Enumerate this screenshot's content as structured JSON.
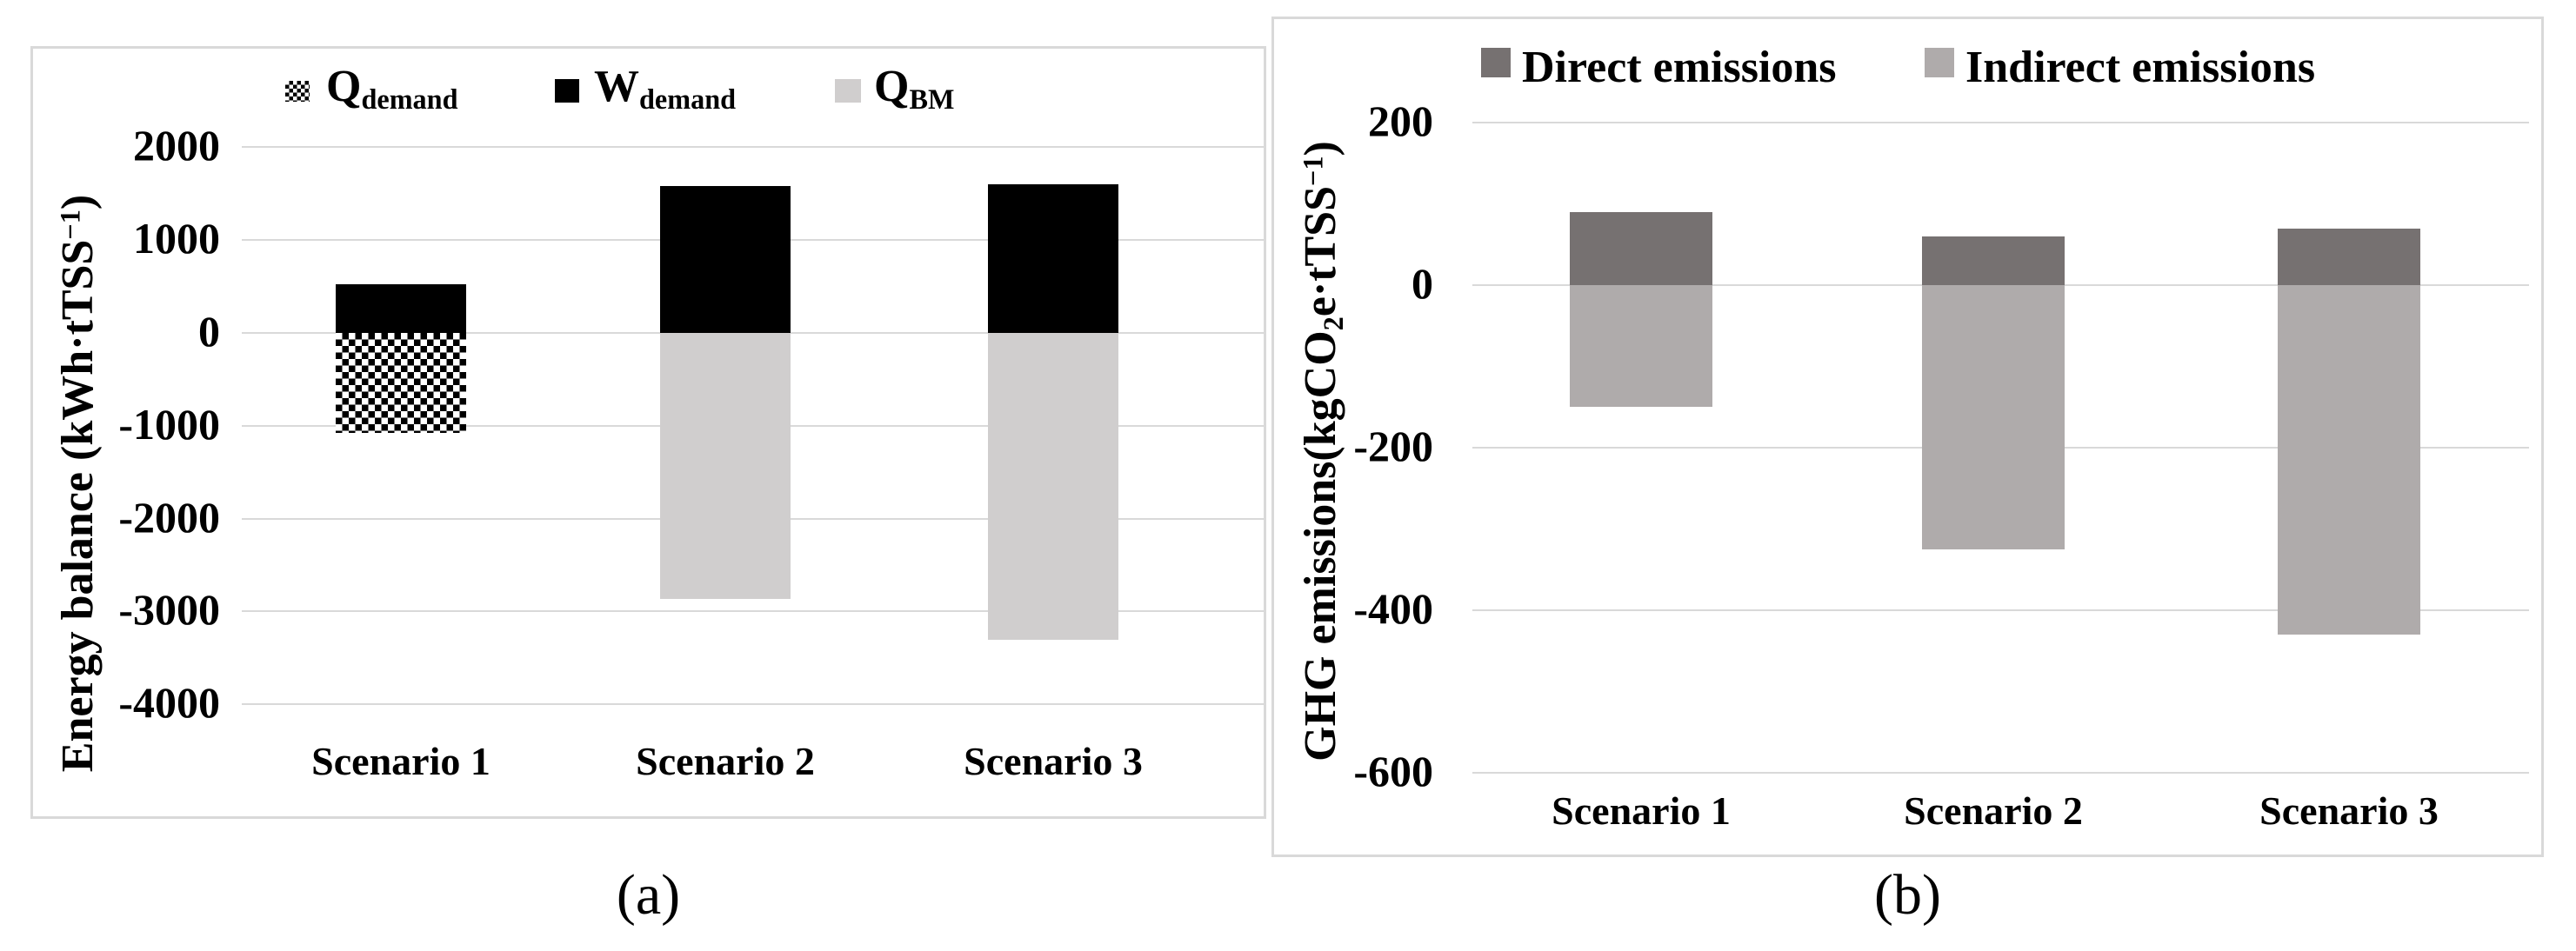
{
  "colors": {
    "frame": "#d9d9d9",
    "gridline": "#d9d9d9",
    "bar_black": "#000000",
    "bar_light_gray": "#d0cece",
    "bar_dark_gray": "#767171",
    "bar_gray": "#afabab"
  },
  "figure": {
    "caption_a": "(a)",
    "caption_b": "(b)"
  },
  "panel_a": {
    "legend": [
      {
        "symbol": "checker-pattern-swatch",
        "main": "Q",
        "sub": "demand"
      },
      {
        "symbol": "black-swatch",
        "main": "W",
        "sub": "demand"
      },
      {
        "symbol": "light-gray-swatch",
        "main": "Q",
        "sub": "BM"
      }
    ],
    "y_axis_title": {
      "pre": "Energy balance (kWh·tTSS",
      "sup": "−1",
      "post": ")"
    },
    "y_ticks": [
      "2000",
      "1000",
      "0",
      "-1000",
      "-2000",
      "-3000",
      "-4000"
    ]
  },
  "panel_b": {
    "legend": [
      {
        "symbol": "dark-gray-swatch",
        "label": "Direct emissions"
      },
      {
        "symbol": "gray-swatch",
        "label": "Indirect emissions"
      }
    ],
    "y_axis_title": {
      "pre": "GHG emissions(kgCO",
      "sub": "2",
      "mid": "e·tTSS",
      "sup": "−1",
      "post": ")"
    },
    "y_ticks": [
      "200",
      "0",
      "-200",
      "-400",
      "-600"
    ]
  },
  "chart_data": [
    {
      "id": "a",
      "type": "bar",
      "stacked": true,
      "categories": [
        "Scenario 1",
        "Scenario 2",
        "Scenario 3"
      ],
      "series": [
        {
          "name": "Qdemand",
          "style": "checker",
          "values": [
            -1080,
            0,
            0
          ]
        },
        {
          "name": "Wdemand",
          "style": "black",
          "values": [
            520,
            1580,
            1600
          ]
        },
        {
          "name": "QBM",
          "style": "lightgray",
          "values": [
            0,
            -2860,
            -3300
          ]
        }
      ],
      "ylabel": "Energy balance (kWh·tTSS−1)",
      "ylim": [
        -4000,
        2000
      ],
      "ytick_step": 1000,
      "grid": true,
      "legend_position": "top"
    },
    {
      "id": "b",
      "type": "bar",
      "stacked": true,
      "categories": [
        "Scenario 1",
        "Scenario 2",
        "Scenario 3"
      ],
      "series": [
        {
          "name": "Direct emissions",
          "style": "darkgray",
          "values": [
            90,
            60,
            70
          ]
        },
        {
          "name": "Indirect emissions",
          "style": "gray",
          "values": [
            -150,
            -325,
            -430
          ]
        }
      ],
      "ylabel": "GHG emissions(kgCO2e·tTSS−1)",
      "ylim": [
        -600,
        200
      ],
      "ytick_step": 200,
      "grid": true,
      "legend_position": "top"
    }
  ]
}
